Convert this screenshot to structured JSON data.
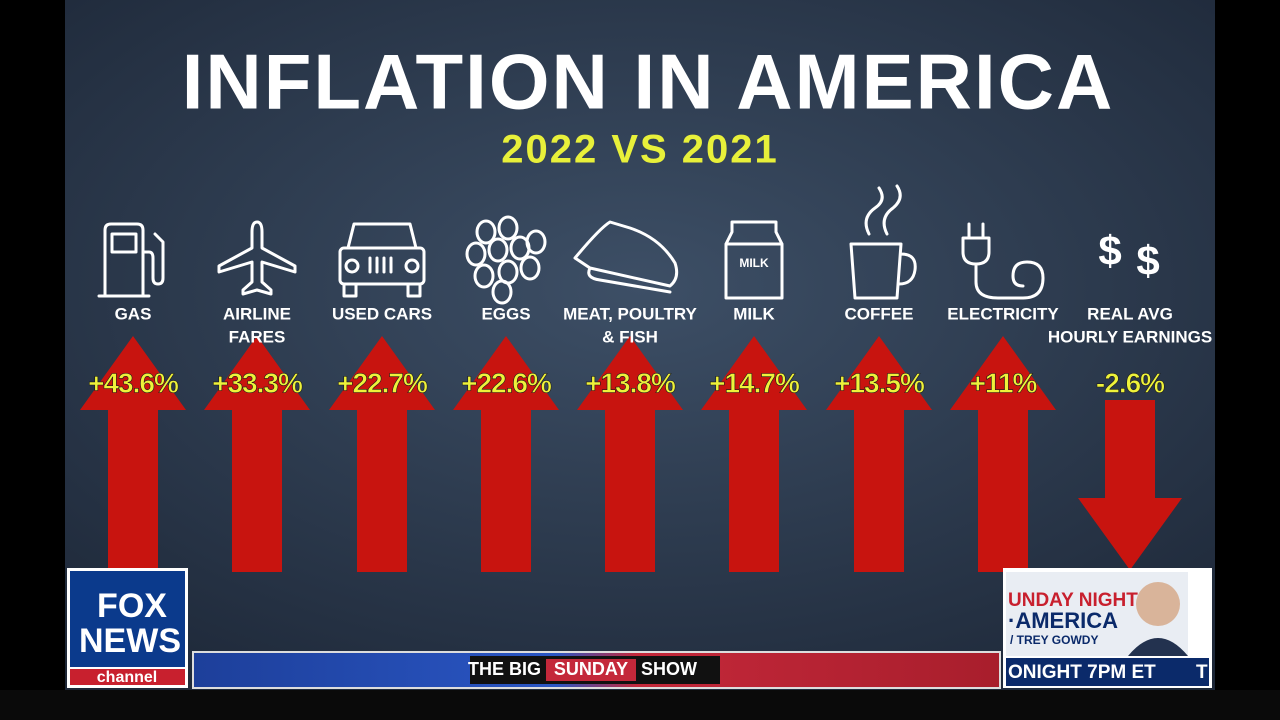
{
  "header": {
    "title": "INFLATION IN AMERICA",
    "subtitle": "2022 VS 2021"
  },
  "items": [
    {
      "label": [
        "GAS"
      ],
      "value": "+43.6%"
    },
    {
      "label": [
        "AIRLINE",
        "FARES"
      ],
      "value": "+33.3%"
    },
    {
      "label": [
        "USED CARS"
      ],
      "value": "+22.7%"
    },
    {
      "label": [
        "EGGS"
      ],
      "value": "+22.6%"
    },
    {
      "label": [
        "MEAT, POULTRY",
        "& FISH"
      ],
      "value": "+13.8%"
    },
    {
      "label": [
        "MILK"
      ],
      "value": "+14.7%",
      "carton_text": "MILK"
    },
    {
      "label": [
        "COFFEE"
      ],
      "value": "+13.5%"
    },
    {
      "label": [
        "ELECTRICITY"
      ],
      "value": "+11%"
    },
    {
      "label": [
        "REAL AVG",
        "HOURLY EARNINGS"
      ],
      "value": "-2.6%"
    }
  ],
  "logo": {
    "line1": "FOX",
    "line2": "NEWS",
    "line3": "channel"
  },
  "banner": {
    "part1": "THE BIG",
    "part2": "SUNDAY",
    "part3": "SHOW"
  },
  "promo": {
    "line1": "UNDAY NIGHT",
    "line2": "·AMERICA",
    "line3": "/ TREY GOWDY",
    "line4": "ONIGHT 7PM ET",
    "line5": "T"
  }
}
